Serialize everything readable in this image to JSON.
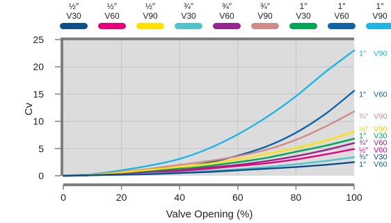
{
  "chart_data": {
    "type": "line",
    "xlabel": "Valve Opening (%)",
    "ylabel": "Cv",
    "xlim": [
      0,
      100
    ],
    "ylim": [
      0,
      25
    ],
    "x_ticks": [
      "0",
      "20",
      "40",
      "60",
      "80",
      "100"
    ],
    "y_ticks": [
      "0",
      "5",
      "10",
      "15",
      "20",
      "25"
    ],
    "grid": true,
    "legend": "top",
    "legend_items": [
      {
        "size": "½″",
        "type": "V30",
        "color": "#0d4f8a"
      },
      {
        "size": "½″",
        "type": "V60",
        "color": "#e5007e"
      },
      {
        "size": "½″",
        "type": "V90",
        "color": "#ffe200"
      },
      {
        "size": "¾″",
        "type": "V30",
        "color": "#4fc4cc"
      },
      {
        "size": "¾″",
        "type": "V60",
        "color": "#93278f"
      },
      {
        "size": "¾″",
        "type": "V90",
        "color": "#d18a88"
      },
      {
        "size": "1″",
        "type": "V30",
        "color": "#00a651"
      },
      {
        "size": "1″",
        "type": "V60",
        "color": "#0f64a8"
      },
      {
        "size": "1″",
        "type": "V90",
        "color": "#1cb5e8"
      }
    ],
    "series": [
      {
        "size": "1″",
        "type": "V90",
        "color": "#1cb5e8",
        "label_color": "#1cb5e8",
        "x": [
          0,
          10,
          20,
          30,
          40,
          50,
          60,
          70,
          80,
          90,
          100
        ],
        "y": [
          0,
          0.3,
          1.0,
          1.9,
          3.1,
          5.0,
          7.6,
          10.8,
          14.6,
          19.0,
          23.0
        ]
      },
      {
        "size": "1″",
        "type": "V60",
        "color": "#0f64a8",
        "label_color": "#0f64a8",
        "x": [
          0,
          10,
          20,
          30,
          40,
          50,
          60,
          70,
          80,
          90,
          100
        ],
        "y": [
          0,
          0.1,
          0.4,
          0.8,
          1.5,
          2.4,
          3.7,
          5.4,
          7.9,
          11.3,
          15.6
        ]
      },
      {
        "size": "¾″",
        "type": "V90",
        "color": "#d18a88",
        "label_color": "#d18a88",
        "x": [
          0,
          10,
          20,
          30,
          40,
          50,
          60,
          70,
          80,
          90,
          100
        ],
        "y": [
          0,
          0.2,
          0.7,
          1.3,
          2.0,
          2.7,
          3.6,
          4.8,
          6.6,
          9.0,
          11.8
        ]
      },
      {
        "size": "½″",
        "type": "V90",
        "color": "#ffe200",
        "label_color": "#f2c900",
        "x": [
          0,
          10,
          20,
          30,
          40,
          50,
          60,
          70,
          80,
          90,
          100
        ],
        "y": [
          0,
          0.2,
          0.6,
          1.1,
          1.6,
          2.2,
          3.0,
          4.0,
          5.1,
          6.4,
          8.1
        ]
      },
      {
        "size": "1″",
        "type": "V30",
        "color": "#00a651",
        "label_color": "#00a651",
        "x": [
          0,
          10,
          20,
          30,
          40,
          50,
          60,
          70,
          80,
          90,
          100
        ],
        "y": [
          0,
          0.1,
          0.3,
          0.7,
          1.2,
          1.8,
          2.5,
          3.3,
          4.4,
          5.5,
          6.8
        ]
      },
      {
        "size": "¾″",
        "type": "V60",
        "color": "#93278f",
        "label_color": "#93278f",
        "x": [
          0,
          10,
          20,
          30,
          40,
          50,
          60,
          70,
          80,
          90,
          100
        ],
        "y": [
          0,
          0.1,
          0.3,
          0.6,
          1.0,
          1.5,
          2.0,
          2.7,
          3.6,
          4.7,
          6.0
        ]
      },
      {
        "size": "½″",
        "type": "V60",
        "color": "#e5007e",
        "label_color": "#e5007e",
        "x": [
          0,
          10,
          20,
          30,
          40,
          50,
          60,
          70,
          80,
          90,
          100
        ],
        "y": [
          0,
          0.1,
          0.3,
          0.5,
          0.9,
          1.3,
          1.8,
          2.3,
          3.0,
          3.9,
          4.9
        ]
      },
      {
        "size": "¾″",
        "type": "V30",
        "color": "#4fc4cc",
        "label_color": "#0d4f8a",
        "x": [
          0,
          10,
          20,
          30,
          40,
          50,
          60,
          70,
          80,
          90,
          100
        ],
        "y": [
          0,
          0.1,
          0.2,
          0.4,
          0.6,
          0.9,
          1.2,
          1.6,
          2.1,
          2.7,
          3.4
        ]
      },
      {
        "size": "½″",
        "type": "V30",
        "color": "#0d4f8a",
        "label_color": "#0f64a8",
        "x": [
          0,
          10,
          20,
          30,
          40,
          50,
          60,
          70,
          80,
          90,
          100
        ],
        "y": [
          0,
          0.1,
          0.2,
          0.3,
          0.5,
          0.7,
          1.0,
          1.3,
          1.6,
          2.0,
          2.5
        ]
      }
    ],
    "right_labels": [
      {
        "size": "1″",
        "type": "V90",
        "color": "#1cb5e8",
        "y": 22.5
      },
      {
        "size": "1″",
        "type": "V60",
        "color": "#0f64a8",
        "y": 15.0
      },
      {
        "size": "¾″",
        "type": "V90",
        "color": "#d18a88",
        "y": 11.0
      },
      {
        "size": "½″",
        "type": "V90",
        "color": "#f2c900",
        "y": 8.6
      },
      {
        "size": "1″",
        "type": "V30",
        "color": "#00a651",
        "y": 7.4
      },
      {
        "size": "¾″",
        "type": "V60",
        "color": "#93278f",
        "y": 6.1
      },
      {
        "size": "½″",
        "type": "V60",
        "color": "#e5007e",
        "y": 4.8
      },
      {
        "size": "¾″",
        "type": "V30",
        "color": "#0d4f8a",
        "y": 3.5
      },
      {
        "size": "1″",
        "type": "V60",
        "color": "#0f64a8",
        "y": 2.2
      }
    ]
  }
}
